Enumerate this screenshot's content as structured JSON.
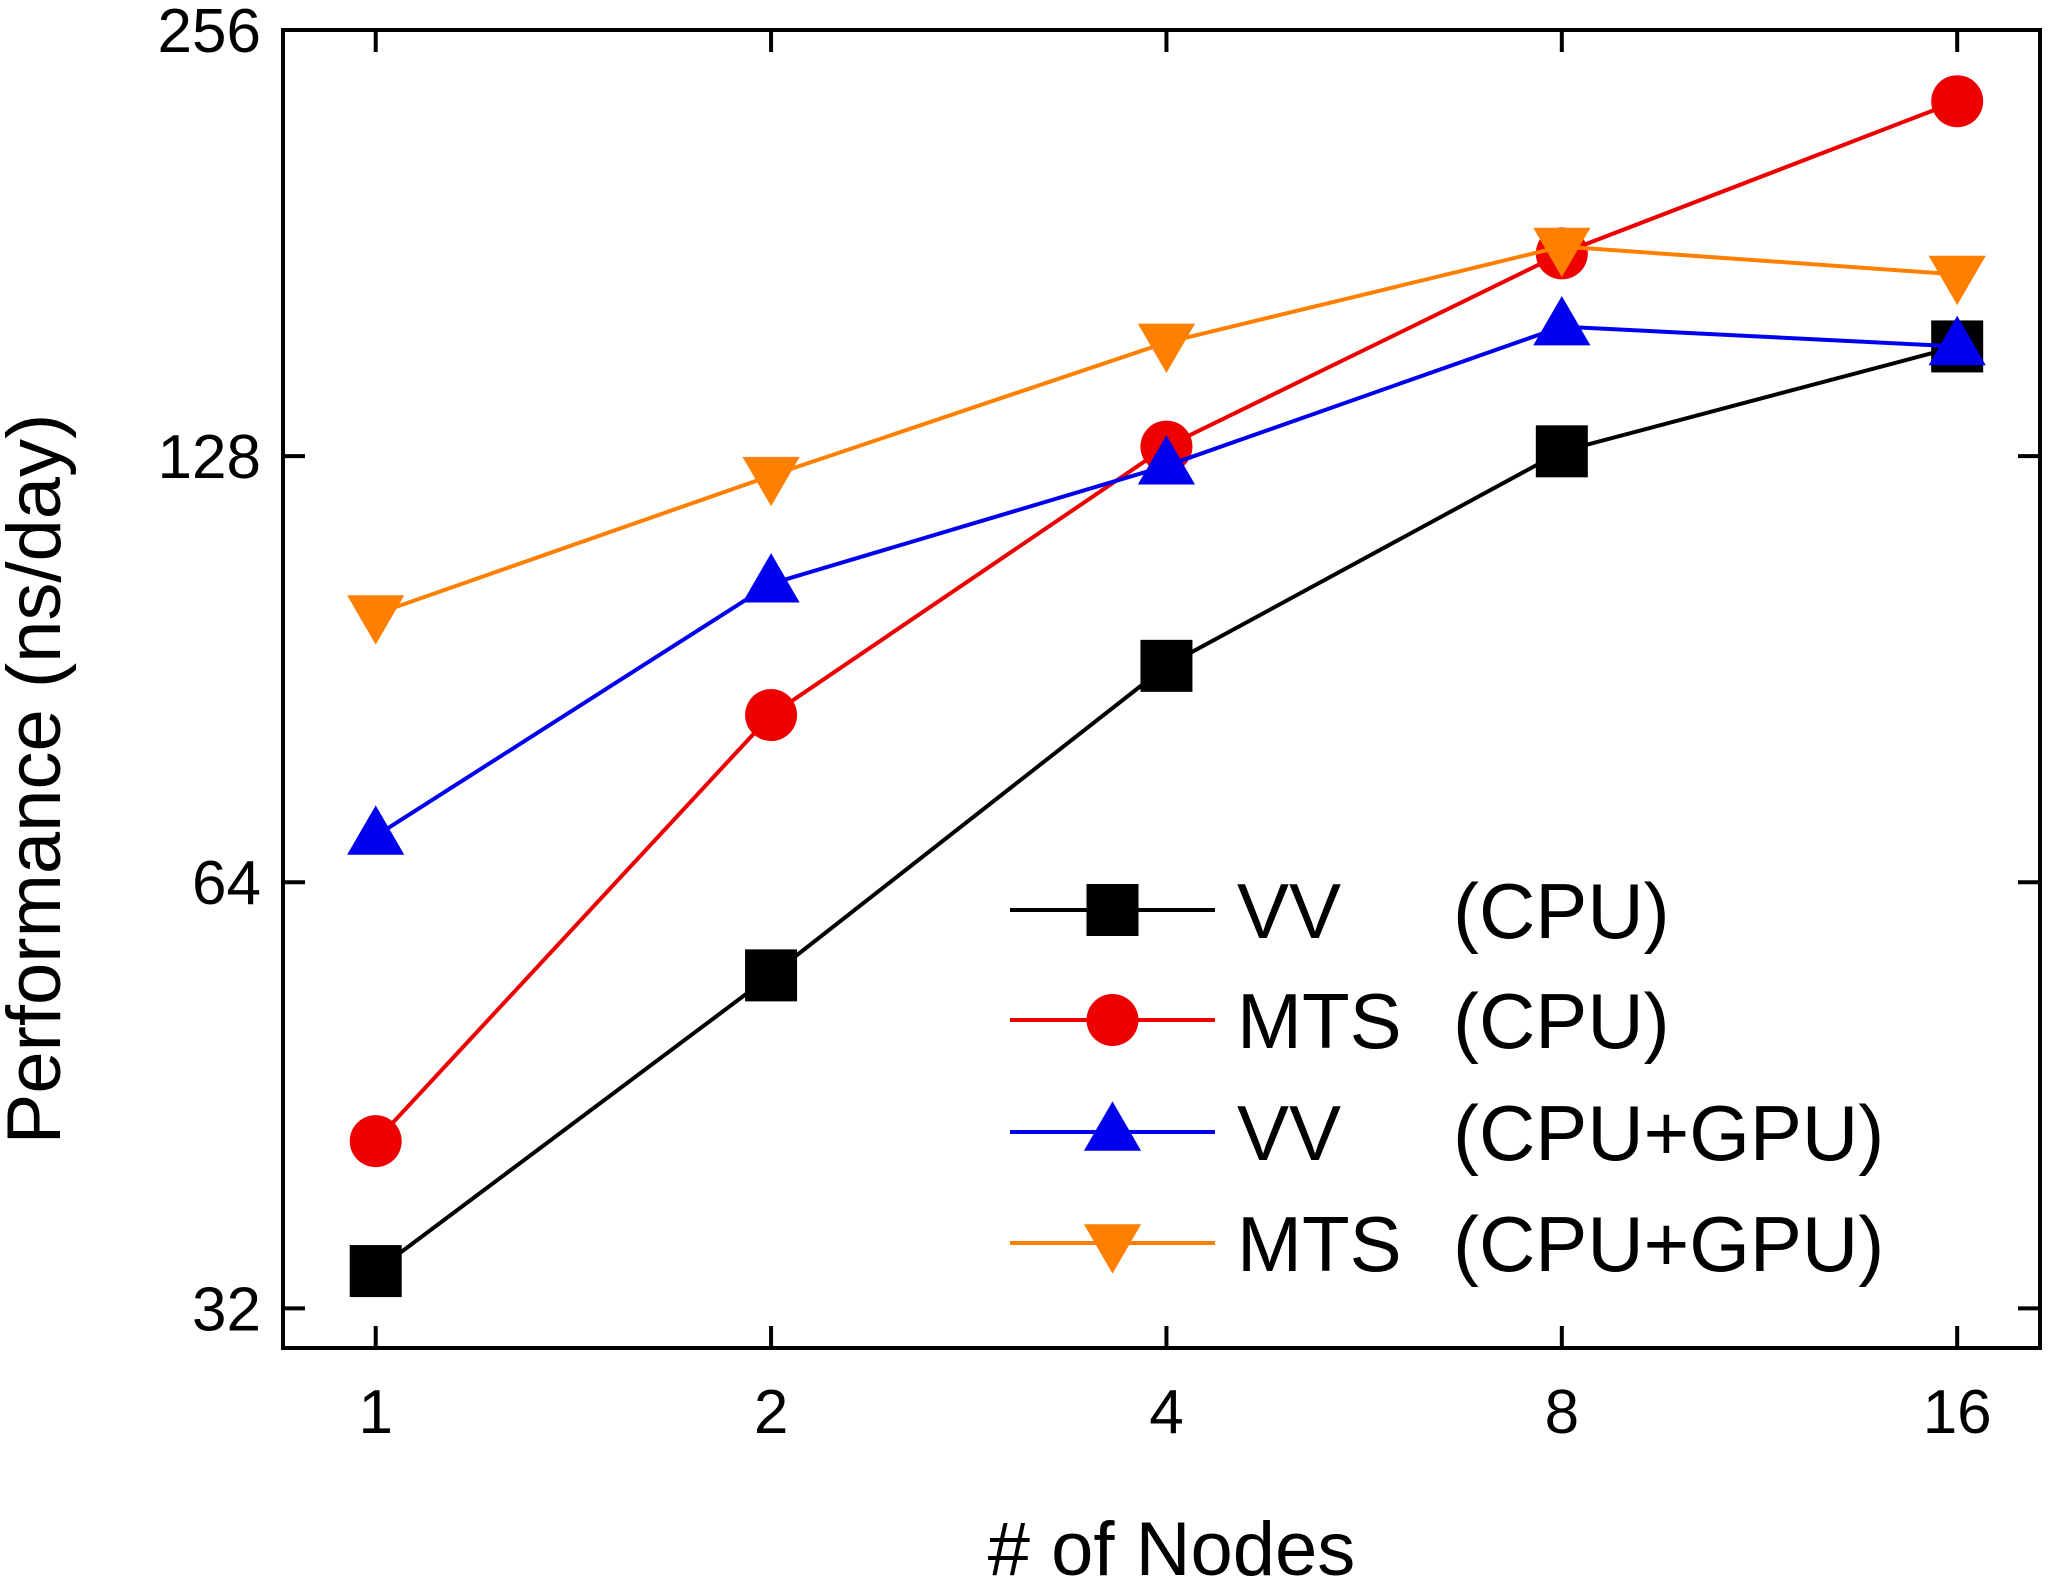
{
  "chart_data": {
    "type": "line",
    "title": "",
    "xlabel": "# of Nodes",
    "ylabel": "Performance (ns/day)",
    "x_scale": "log2",
    "y_scale": "log2",
    "xlim": [
      0.85,
      18.5
    ],
    "ylim": [
      30,
      256
    ],
    "x": [
      1,
      2,
      4,
      8,
      16
    ],
    "x_ticks": [
      "1",
      "2",
      "4",
      "8",
      "16"
    ],
    "y_ticks": [
      32,
      64,
      128,
      256
    ],
    "y_tick_labels": [
      "32",
      "64",
      "128",
      "256"
    ],
    "grid": false,
    "legend": {
      "position": "bottom-right",
      "entries": [
        {
          "prefix": "VV",
          "suffix": "(CPU)"
        },
        {
          "prefix": "MTS",
          "suffix": "(CPU)"
        },
        {
          "prefix": "VV",
          "suffix": "(CPU+GPU)"
        },
        {
          "prefix": "MTS",
          "suffix": "(CPU+GPU)"
        }
      ]
    },
    "series": [
      {
        "name": "VV (CPU)",
        "marker": "square",
        "color": "#000000",
        "values": [
          34,
          55,
          91,
          129,
          153
        ]
      },
      {
        "name": "MTS (CPU)",
        "marker": "circle",
        "color": "#ee0000",
        "values": [
          42,
          84,
          130,
          178,
          228
        ]
      },
      {
        "name": "VV (CPU+GPU)",
        "marker": "triangle-up",
        "color": "#0000ee",
        "values": [
          69,
          104,
          126,
          158,
          153
        ]
      },
      {
        "name": "MTS (CPU+GPU)",
        "marker": "triangle-down",
        "color": "#ff8000",
        "values": [
          99,
          124,
          154,
          180,
          172
        ]
      }
    ]
  }
}
